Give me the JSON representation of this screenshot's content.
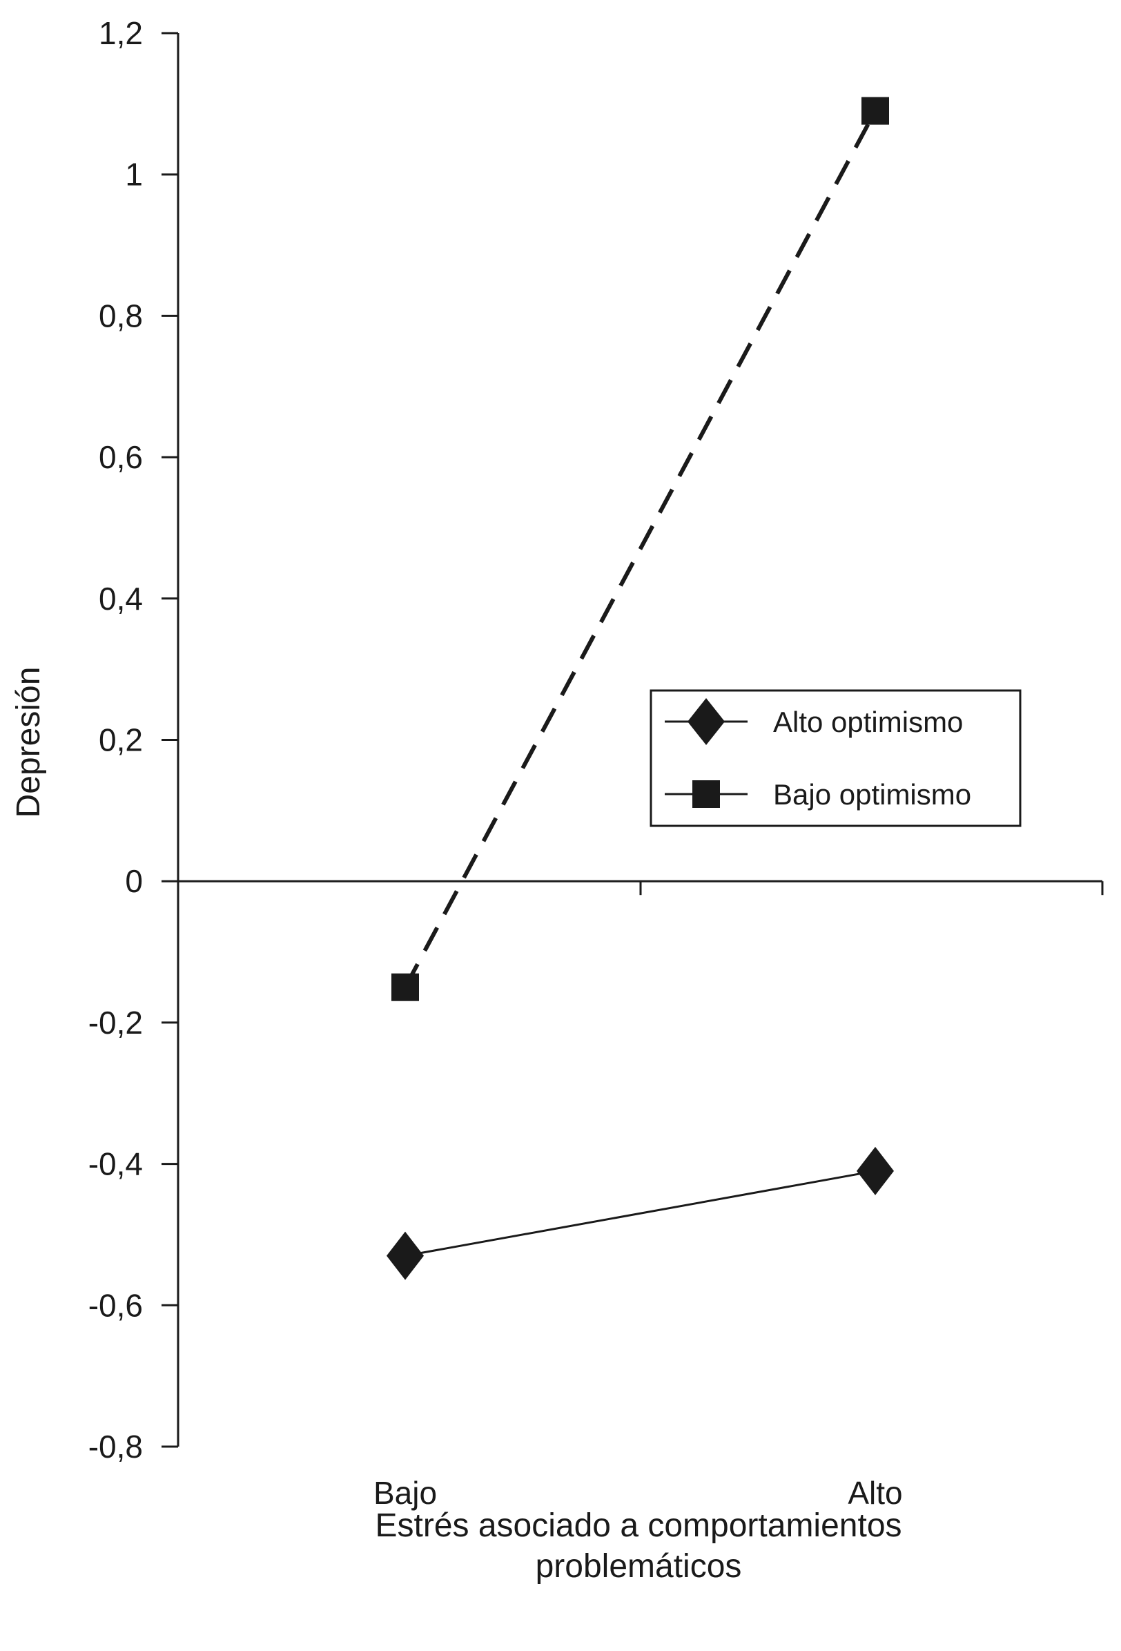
{
  "chart_data": {
    "type": "line",
    "title": "",
    "xlabel": [
      "Estrés asociado a comportamientos",
      "problemáticos"
    ],
    "ylabel": "Depresión",
    "categories": [
      "Bajo",
      "Alto"
    ],
    "ylim": [
      -0.8,
      1.2
    ],
    "yticks": [
      1.2,
      1,
      0.8,
      0.6,
      0.4,
      0.2,
      0,
      -0.2,
      -0.4,
      -0.6,
      -0.8
    ],
    "ytick_labels": [
      "1,2",
      "1",
      "0,8",
      "0,6",
      "0,4",
      "0,2",
      "0",
      "-0,2",
      "-0,4",
      "-0,6",
      "-0,8"
    ],
    "grid": false,
    "legend_position": "right",
    "series": [
      {
        "name": "Alto optimismo",
        "values": [
          -0.53,
          -0.41
        ],
        "marker": "diamond",
        "line": "solid",
        "color": "#1a1a1a"
      },
      {
        "name": "Bajo optimismo",
        "values": [
          -0.15,
          1.09
        ],
        "marker": "square",
        "line": "dashed",
        "color": "#1a1a1a"
      }
    ]
  }
}
